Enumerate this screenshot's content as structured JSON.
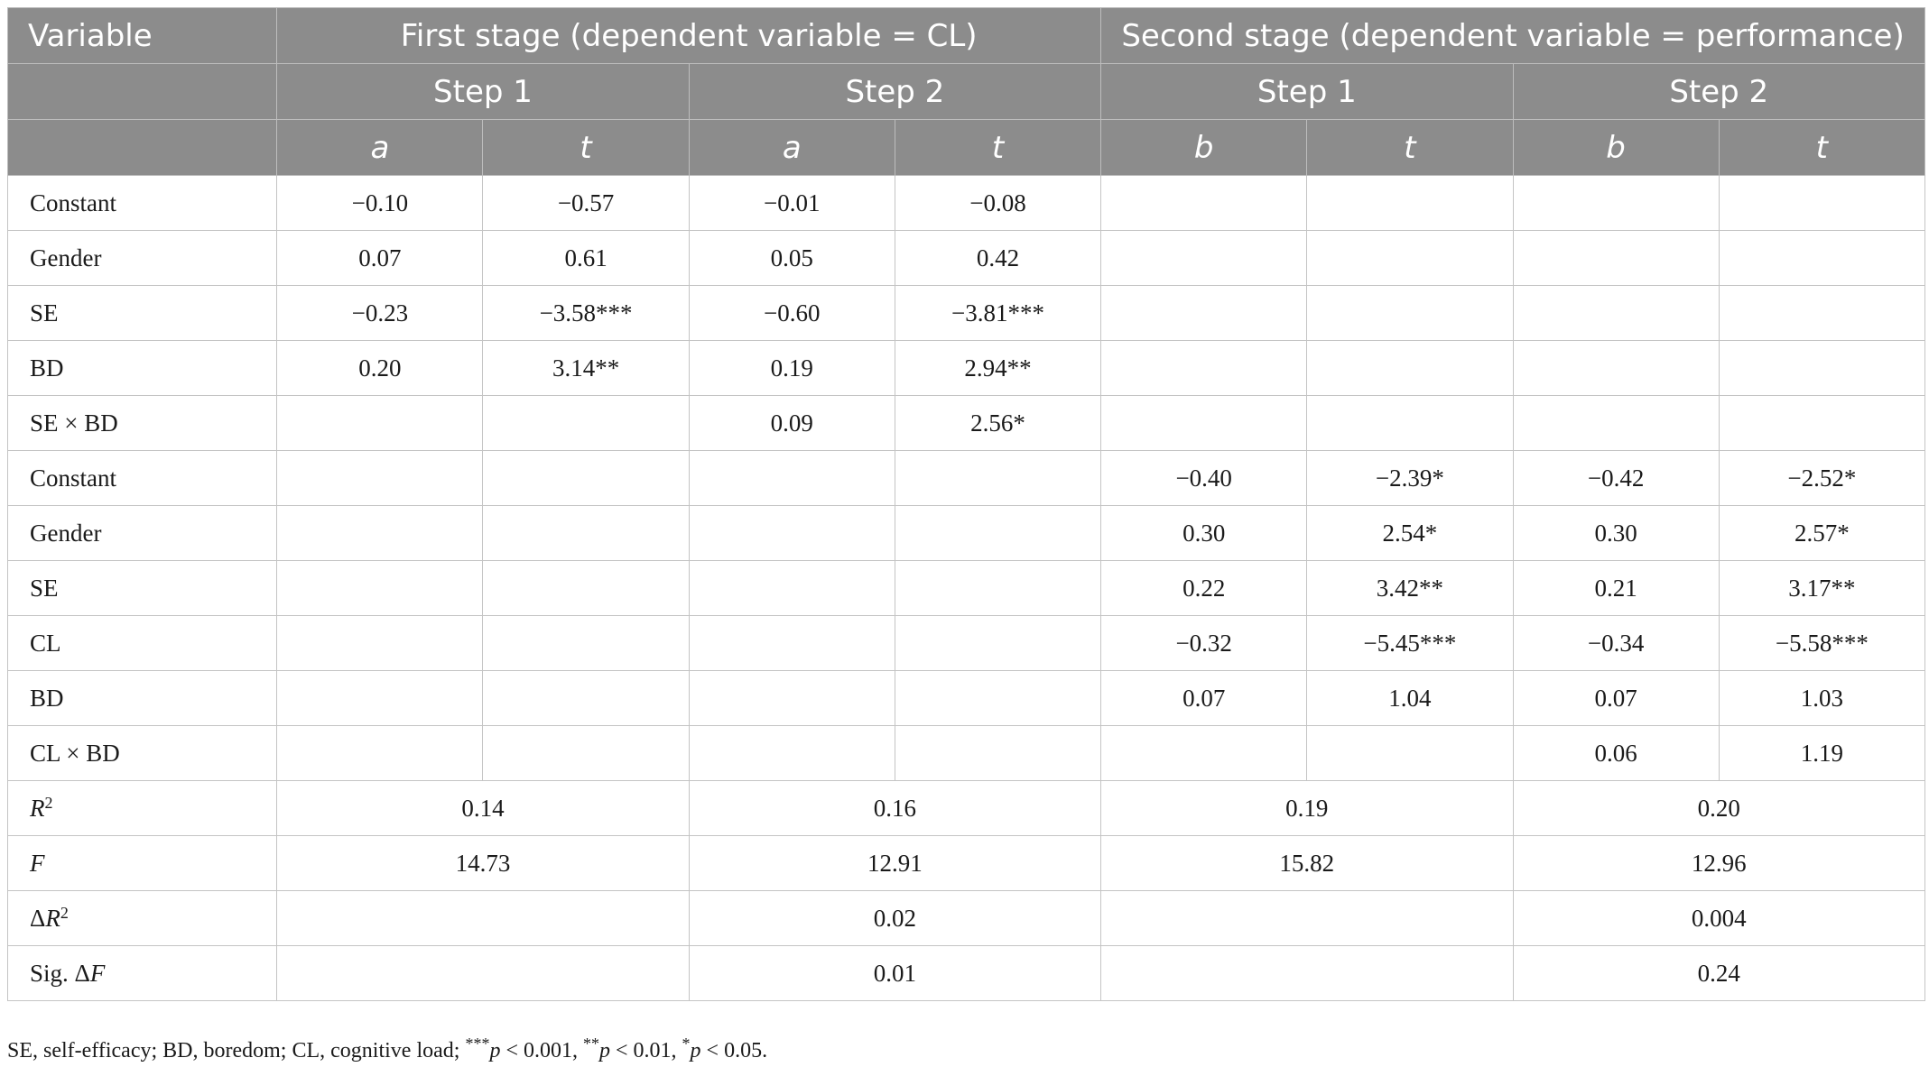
{
  "header": {
    "variable": "Variable",
    "first_stage": "First stage (dependent variable = CL)",
    "second_stage": "Second stage (dependent variable = performance)",
    "steps": [
      "Step 1",
      "Step 2",
      "Step 1",
      "Step 2"
    ],
    "coefs": [
      "a",
      "t",
      "a",
      "t",
      "b",
      "t",
      "b",
      "t"
    ]
  },
  "rows": [
    {
      "label": "Constant",
      "cells": [
        "−0.10",
        "−0.57",
        "−0.01",
        "−0.08",
        "",
        "",
        "",
        ""
      ]
    },
    {
      "label": "Gender",
      "cells": [
        "0.07",
        "0.61",
        "0.05",
        "0.42",
        "",
        "",
        "",
        ""
      ]
    },
    {
      "label": "SE",
      "cells": [
        "−0.23",
        "−3.58***",
        "−0.60",
        "−3.81***",
        "",
        "",
        "",
        ""
      ]
    },
    {
      "label": "BD",
      "cells": [
        "0.20",
        "3.14**",
        "0.19",
        "2.94**",
        "",
        "",
        "",
        ""
      ]
    },
    {
      "label": "SE × BD",
      "cells": [
        "",
        "",
        "0.09",
        "2.56*",
        "",
        "",
        "",
        ""
      ]
    },
    {
      "label": "Constant",
      "cells": [
        "",
        "",
        "",
        "",
        "−0.40",
        "−2.39*",
        "−0.42",
        "−2.52*"
      ]
    },
    {
      "label": "Gender",
      "cells": [
        "",
        "",
        "",
        "",
        "0.30",
        "2.54*",
        "0.30",
        "2.57*"
      ]
    },
    {
      "label": "SE",
      "cells": [
        "",
        "",
        "",
        "",
        "0.22",
        "3.42**",
        "0.21",
        "3.17**"
      ]
    },
    {
      "label": "CL",
      "cells": [
        "",
        "",
        "",
        "",
        "−0.32",
        "−5.45***",
        "−0.34",
        "−5.58***"
      ]
    },
    {
      "label": "BD",
      "cells": [
        "",
        "",
        "",
        "",
        "0.07",
        "1.04",
        "0.07",
        "1.03"
      ]
    },
    {
      "label": "CL × BD",
      "cells": [
        "",
        "",
        "",
        "",
        "",
        "",
        "0.06",
        "1.19"
      ]
    }
  ],
  "summary": {
    "r2": {
      "label_base": "R",
      "label_sup": "2",
      "values": [
        "0.14",
        "0.16",
        "0.19",
        "0.20"
      ]
    },
    "f": {
      "label": "F",
      "values": [
        "14.73",
        "12.91",
        "15.82",
        "12.96"
      ]
    },
    "delta_r2": {
      "label_prefix": "Δ",
      "label_base": "R",
      "label_sup": "2",
      "values": [
        "",
        "0.02",
        "",
        "0.004"
      ]
    },
    "sig_delta_f": {
      "label_prefix": "Sig. Δ",
      "label_base": "F",
      "values": [
        "",
        "0.01",
        "",
        "0.24"
      ]
    }
  },
  "footnote": {
    "text": "SE, self-efficacy; BD, boredom; CL, cognitive load;",
    "p1_stars": "***",
    "p1": "p",
    "p1_rest": " < 0.001, ",
    "p2_stars": "**",
    "p2": "p",
    "p2_rest": " < 0.01, ",
    "p3_stars": "*",
    "p3": "p",
    "p3_rest": " < 0.05."
  }
}
